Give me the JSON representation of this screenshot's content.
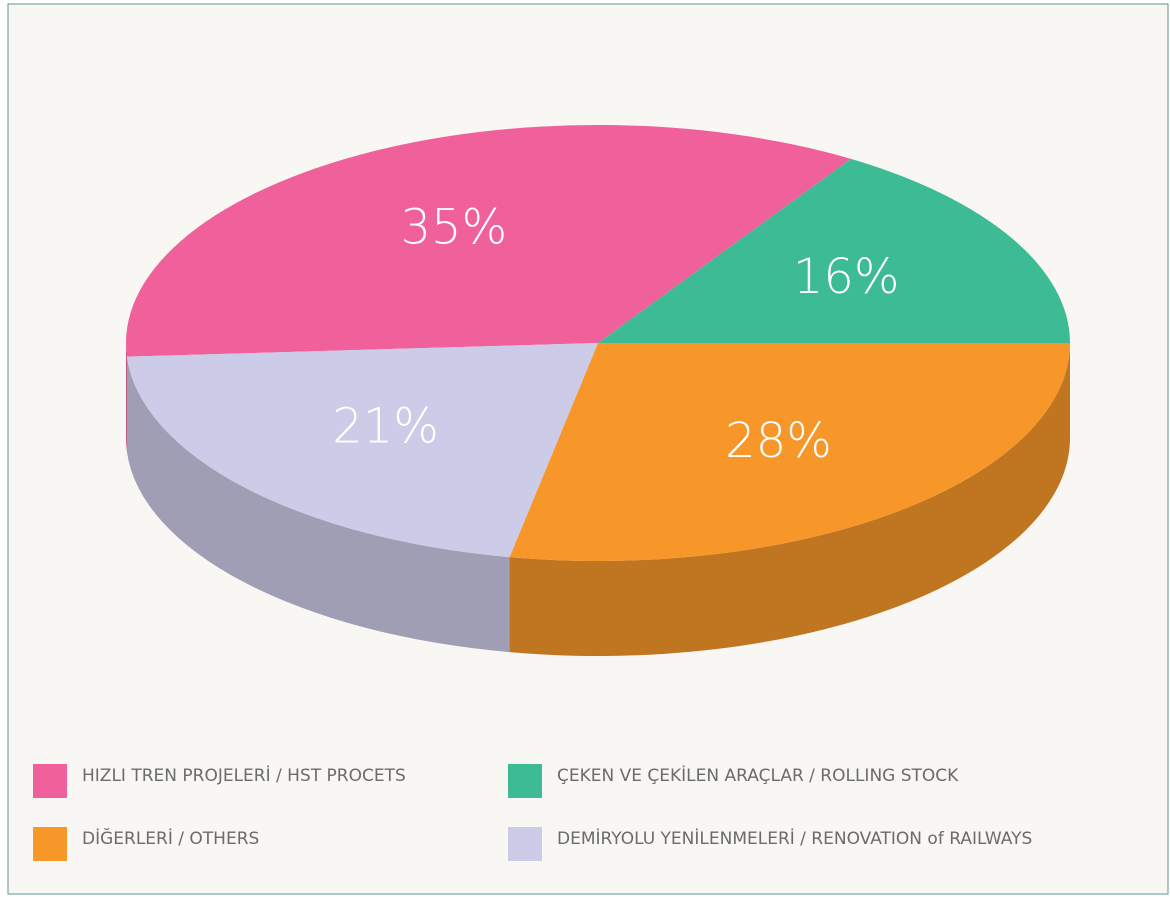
{
  "chart_data": {
    "type": "pie",
    "categories": [
      "HIZLI TREN PROJELERİ / HST PROCETS",
      "ÇEKEN VE ÇEKİLEN ARAÇLAR / ROLLING STOCK",
      "DİĞERLERİ / OTHERS",
      "DEMİRYOLU YENİLENMELERİ / RENOVATION of RAILWAYS"
    ],
    "values": [
      35,
      16,
      28,
      21
    ],
    "value_labels": [
      "35%",
      "16%",
      "28%",
      "21%"
    ],
    "colors": [
      "#f0609a",
      "#3dbb94",
      "#f7972a",
      "#cccbe8"
    ],
    "legend": "bottom"
  }
}
